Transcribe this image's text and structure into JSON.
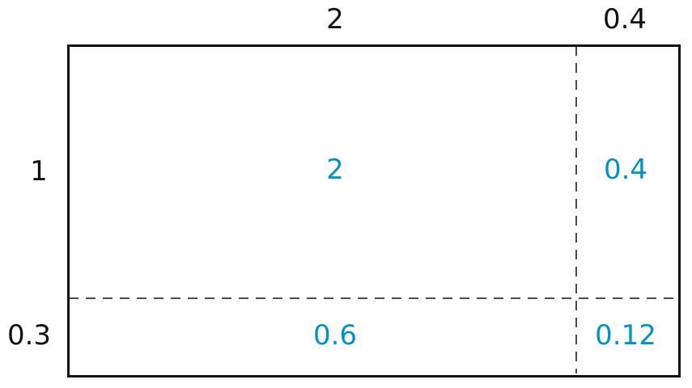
{
  "diagram": {
    "column_labels": [
      "2",
      "0.4"
    ],
    "row_labels": [
      "1",
      "0.3"
    ],
    "cells": [
      [
        "2",
        "0.4"
      ],
      [
        "0.6",
        "0.12"
      ]
    ],
    "cell_text_color": "#0093c9",
    "divider_style": "dashed"
  }
}
